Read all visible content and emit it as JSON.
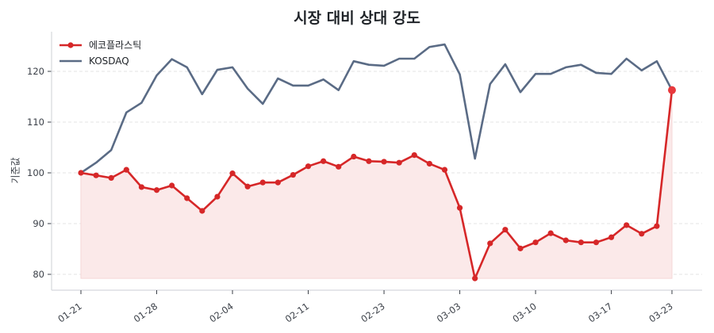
{
  "chart_data": {
    "type": "line",
    "title": "시장 대비 상대 강도",
    "xlabel": "",
    "ylabel": "기준값",
    "ylim": [
      77,
      128
    ],
    "yticks": [
      80,
      90,
      100,
      110,
      120
    ],
    "xtick_labels": [
      {
        "index": 0,
        "label": "01-21"
      },
      {
        "index": 5,
        "label": "01-28"
      },
      {
        "index": 10,
        "label": "02-04"
      },
      {
        "index": 15,
        "label": "02-11"
      },
      {
        "index": 20,
        "label": "02-23"
      },
      {
        "index": 25,
        "label": "03-03"
      },
      {
        "index": 30,
        "label": "03-10"
      },
      {
        "index": 35,
        "label": "03-17"
      },
      {
        "index": 39,
        "label": "03-23"
      }
    ],
    "grid": "horizontal dashed",
    "legend_position": "upper left",
    "fill_baseline": 79.2,
    "series": [
      {
        "name": "에코플라스틱",
        "color": "#d62728",
        "marker": "circle",
        "fill": "#fbe9e9",
        "values": [
          100.0,
          99.5,
          99.0,
          100.6,
          97.2,
          96.6,
          97.5,
          95.0,
          92.5,
          95.3,
          99.9,
          97.3,
          98.1,
          98.1,
          99.6,
          101.3,
          102.3,
          101.2,
          103.2,
          102.3,
          102.2,
          102.0,
          103.5,
          101.8,
          100.6,
          93.1,
          79.2,
          86.1,
          88.8,
          85.1,
          86.3,
          88.1,
          86.7,
          86.3,
          86.3,
          87.3,
          89.7,
          88.0,
          89.5,
          116.3
        ]
      },
      {
        "name": "KOSDAQ",
        "color": "#5a6b85",
        "marker": "none",
        "values": [
          100.0,
          102.0,
          104.5,
          111.9,
          113.8,
          119.2,
          122.4,
          120.8,
          115.5,
          120.3,
          120.8,
          116.6,
          113.6,
          118.6,
          117.2,
          117.2,
          118.4,
          116.3,
          122.0,
          121.3,
          121.1,
          122.5,
          122.5,
          124.8,
          125.3,
          119.4,
          102.8,
          117.5,
          121.4,
          115.9,
          119.5,
          119.5,
          120.8,
          121.3,
          119.7,
          119.5,
          122.5,
          120.2,
          122.0,
          116.3
        ]
      }
    ]
  }
}
